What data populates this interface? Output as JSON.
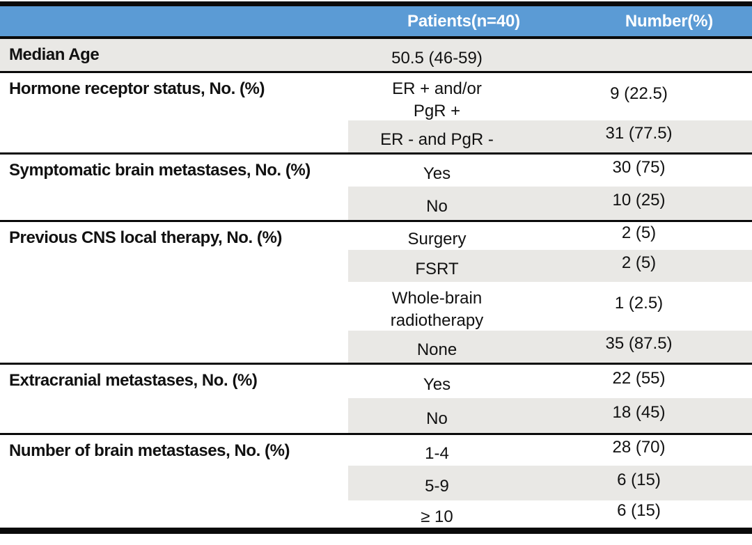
{
  "table": {
    "header": {
      "patients": "Patients(n=40)",
      "number": "Number(%)"
    },
    "colors": {
      "header_bg": "#5B9BD5",
      "header_text": "#FFFFFF",
      "stripe": "#E9E8E5",
      "border": "#0A0A0A"
    },
    "sections": [
      {
        "label": "Median Age",
        "subrows": [
          {
            "patients": "50.5 (46-59)",
            "number": ""
          }
        ]
      },
      {
        "label": "Hormone receptor status, No. (%)",
        "subrows": [
          {
            "patients": "ER + and/or\nPgR +",
            "number": "9 (22.5)"
          },
          {
            "patients": "ER - and PgR -",
            "number": "31 (77.5)"
          }
        ]
      },
      {
        "label": "Symptomatic brain metastases, No. (%)",
        "subrows": [
          {
            "patients": "Yes",
            "number": "30 (75)"
          },
          {
            "patients": "No",
            "number": "10 (25)"
          }
        ]
      },
      {
        "label": "Previous CNS local therapy, No. (%)",
        "subrows": [
          {
            "patients": "Surgery",
            "number": "2 (5)"
          },
          {
            "patients": "FSRT",
            "number": "2 (5)"
          },
          {
            "patients": "Whole-brain\nradiotherapy",
            "number": "1 (2.5)"
          },
          {
            "patients": "None",
            "number": "35 (87.5)"
          }
        ]
      },
      {
        "label": "Extracranial metastases, No. (%)",
        "subrows": [
          {
            "patients": "Yes",
            "number": "22 (55)"
          },
          {
            "patients": "No",
            "number": "18 (45)"
          }
        ]
      },
      {
        "label": "Number of brain metastases, No. (%)",
        "subrows": [
          {
            "patients": "1-4",
            "number": "28 (70)"
          },
          {
            "patients": "5-9",
            "number": "6 (15)"
          },
          {
            "patients": "≥ 10",
            "number": "6 (15)"
          }
        ]
      }
    ]
  }
}
